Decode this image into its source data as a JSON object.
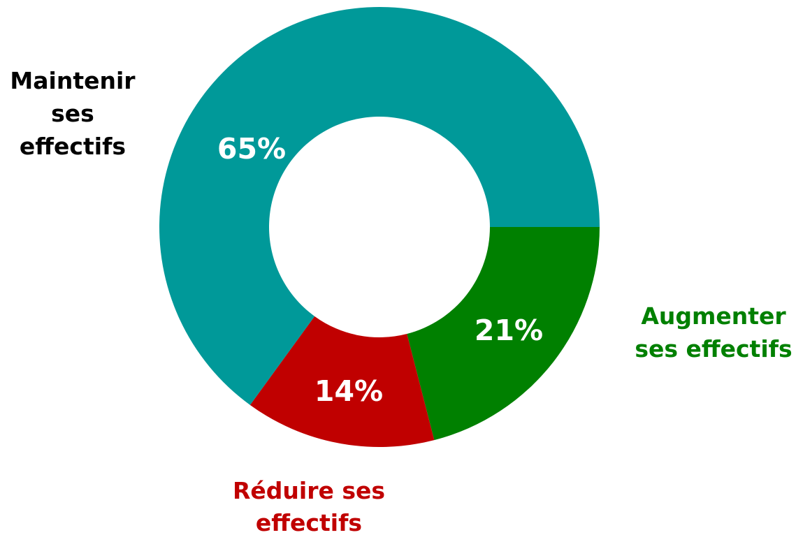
{
  "chart_data": {
    "type": "pie",
    "variant": "donut",
    "title": "",
    "slices": [
      {
        "label": "Maintenir ses effectifs",
        "label_lines": [
          "Maintenir",
          "ses",
          "effectifs"
        ],
        "value": 65,
        "value_label": "65%",
        "color": "#009999",
        "label_color": "#000000"
      },
      {
        "label": "Augmenter ses effectifs",
        "label_lines": [
          "Augmenter",
          "ses effectifs"
        ],
        "value": 21,
        "value_label": "21%",
        "color": "#008000",
        "label_color": "#008000"
      },
      {
        "label": "Réduire ses effectifs",
        "label_lines": [
          "Réduire ses",
          "effectifs"
        ],
        "value": 14,
        "value_label": "14%",
        "color": "#C00000",
        "label_color": "#C00000"
      }
    ],
    "legend": "none",
    "labels_placement": "outside"
  }
}
